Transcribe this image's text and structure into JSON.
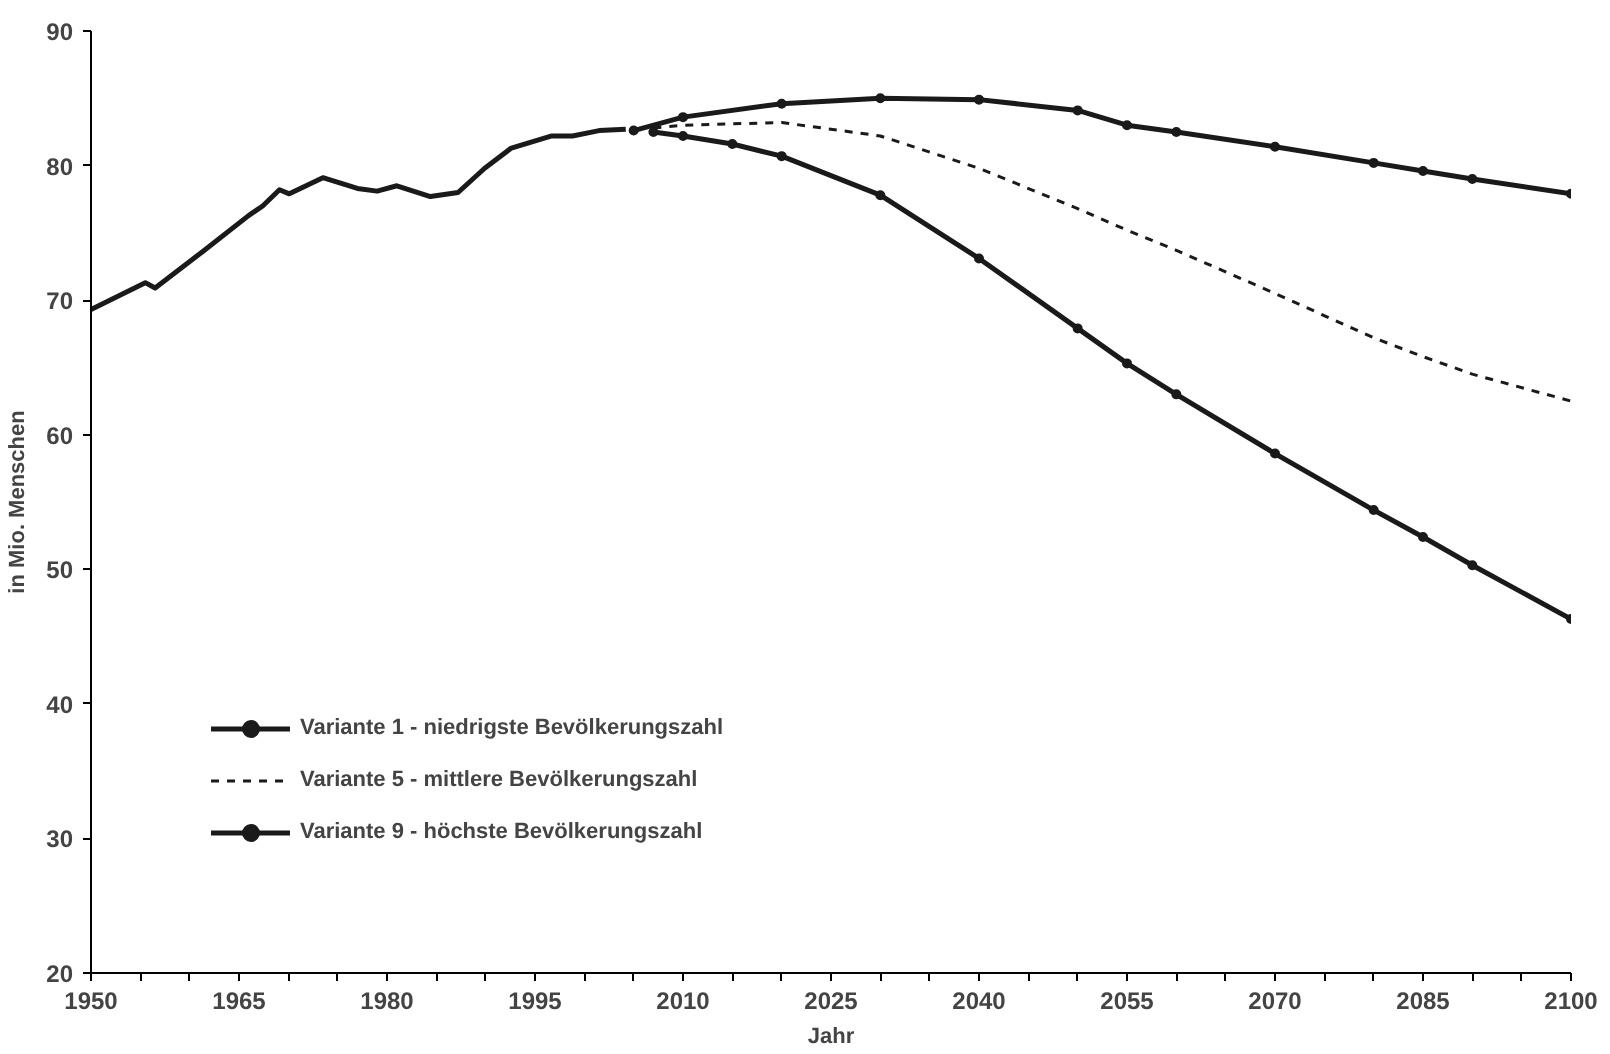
{
  "chart_data": {
    "type": "line",
    "xlabel": "Jahr",
    "ylabel": "in Mio. Menschen",
    "xlim": [
      1950,
      2100
    ],
    "ylim": [
      20,
      90
    ],
    "xticks": [
      1950,
      {
        "value": 1955,
        "label": null
      },
      {
        "value": 1960,
        "label": null
      },
      1965,
      {
        "value": 1970,
        "label": null
      },
      {
        "value": 1975,
        "label": null
      },
      1980,
      {
        "value": 1985,
        "label": null
      },
      {
        "value": 1990,
        "label": null
      },
      1995,
      {
        "value": 2000,
        "label": null
      },
      {
        "value": 2005,
        "label": null
      },
      2010,
      {
        "value": 2015,
        "label": null
      },
      {
        "value": 2020,
        "label": null
      },
      2025,
      {
        "value": 2030,
        "label": null
      },
      {
        "value": 2035,
        "label": null
      },
      2040,
      {
        "value": 2045,
        "label": null
      },
      {
        "value": 2050,
        "label": null
      },
      2055,
      {
        "value": 2060,
        "label": null
      },
      {
        "value": 2065,
        "label": null
      },
      2070,
      {
        "value": 2075,
        "label": null
      },
      {
        "value": 2080,
        "label": null
      },
      2085,
      {
        "value": 2090,
        "label": null
      },
      {
        "value": 2095,
        "label": null
      },
      2100
    ],
    "yticks": [
      20,
      30,
      40,
      50,
      60,
      70,
      80,
      90
    ],
    "grid": false,
    "legend": "bottom left",
    "series": [
      {
        "color": "#1a1a1a",
        "line_style": "solid",
        "marker": "none",
        "x": [
          1950,
          1955.5,
          1956.5,
          1961.3,
          1966,
          1967.4,
          1969.1,
          1970.1,
          1973.5,
          1977,
          1979,
          1981,
          1984.4,
          1987.2,
          1989.9,
          1992.6,
          1996.7,
          1998.8,
          2001.5,
          2004.2
        ],
        "values": [
          69.3,
          71.3,
          70.9,
          73.6,
          76.3,
          77.0,
          78.2,
          77.9,
          79.1,
          78.3,
          78.1,
          78.5,
          77.7,
          78.0,
          79.8,
          81.3,
          82.2,
          82.2,
          82.6,
          82.7
        ]
      },
      {
        "name": "Variante 1 - niedrigste Bevölkerungszahl",
        "color": "#1a1a1a",
        "line_style": "solid",
        "marker": "circle",
        "x": [
          2007,
          2010,
          2015,
          2020,
          2030,
          2040,
          2050,
          2055,
          2060,
          2070,
          2080,
          2085,
          2090,
          2100
        ],
        "values": [
          82.5,
          82.2,
          81.6,
          80.7,
          77.8,
          73.1,
          67.9,
          65.3,
          63.0,
          58.6,
          54.4,
          52.4,
          50.3,
          46.3
        ]
      },
      {
        "name": "Variante 5 - mittlere Bevölkerungszahl",
        "color": "#1a1a1a",
        "line_style": "dashed",
        "marker": "none",
        "x": [
          2007,
          2010,
          2020,
          2030,
          2040,
          2050,
          2055,
          2060,
          2070,
          2080,
          2085,
          2090,
          2100
        ],
        "values": [
          82.8,
          83.0,
          83.2,
          82.2,
          79.8,
          76.8,
          75.2,
          73.7,
          70.5,
          67.2,
          65.8,
          64.5,
          62.5
        ]
      },
      {
        "name": "Variante 9 - höchste Bevölkerungszahl",
        "color": "#1a1a1a",
        "line_style": "solid",
        "marker": "circle",
        "x": [
          2005,
          2010,
          2020,
          2030,
          2040,
          2050,
          2055,
          2060,
          2070,
          2080,
          2085,
          2090,
          2100
        ],
        "values": [
          82.6,
          83.6,
          84.6,
          85.0,
          84.9,
          84.1,
          83.0,
          82.5,
          81.4,
          80.2,
          79.6,
          79.0,
          77.9
        ]
      }
    ]
  }
}
